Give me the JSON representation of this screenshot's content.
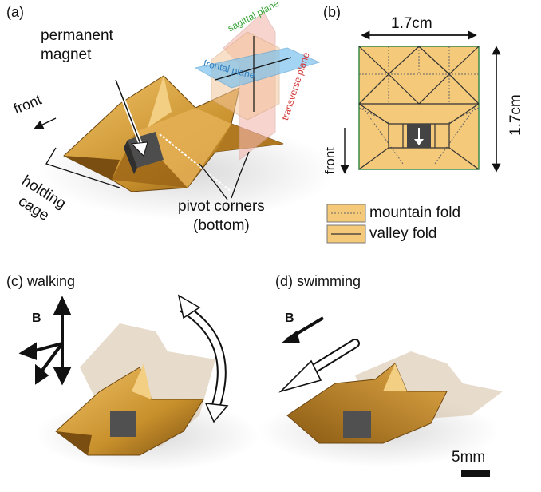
{
  "panels": {
    "a": {
      "label": "(a)",
      "permanent_magnet": [
        "permanent",
        "magnet"
      ],
      "front": "front",
      "holding_cage": [
        "holding",
        "cage"
      ],
      "pivot_corners": [
        "pivot corners",
        "(bottom)"
      ],
      "planes": {
        "sagittal": "sagittal plane",
        "frontal": "frontal plane",
        "transverse": "transverse plane"
      },
      "plane_colors": {
        "sagittal": "#3aa63a",
        "frontal": "#2f7fc0",
        "transverse": "#d43a3a"
      }
    },
    "b": {
      "label": "(b)",
      "width": "1.7cm",
      "height": "1.7cm",
      "front": "front",
      "legend": [
        {
          "name": "mountain fold",
          "style": "dotted"
        },
        {
          "name": "valley fold",
          "style": "solid"
        }
      ],
      "paper_color": "#f5c97a"
    },
    "c": {
      "label": "(c) walking",
      "field": "B"
    },
    "d": {
      "label": "(d) swimming",
      "field": "B"
    }
  },
  "scale_bar": "5mm",
  "colors": {
    "gold": "#c8902c",
    "gold_light": "#e8b55a",
    "gold_dark": "#8a5a12",
    "ghost": "#c9b08c"
  }
}
